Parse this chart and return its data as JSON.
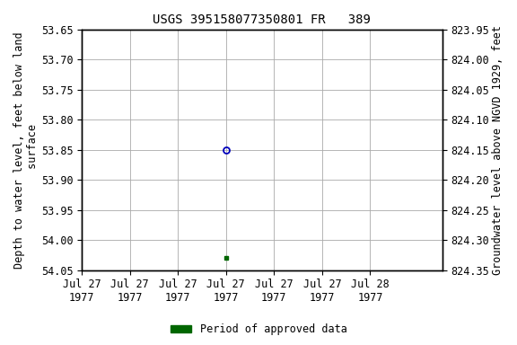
{
  "title": "USGS 395158077350801 FR   389",
  "ylabel_left": "Depth to water level, feet below land\n surface",
  "ylabel_right": "Groundwater level above NGVD 1929, feet",
  "ylim_left": [
    53.65,
    54.05
  ],
  "ylim_right_top": 824.35,
  "ylim_right_bottom": 823.95,
  "yticks_left": [
    53.65,
    53.7,
    53.75,
    53.8,
    53.85,
    53.9,
    53.95,
    54.0,
    54.05
  ],
  "yticks_right": [
    824.35,
    824.3,
    824.25,
    824.2,
    824.15,
    824.1,
    824.05,
    824.0,
    823.95
  ],
  "data_blue_x_hour": 12,
  "data_blue_y": 53.85,
  "data_green_x_hour": 12,
  "data_green_y": 54.03,
  "background_color": "#ffffff",
  "grid_color": "#aaaaaa",
  "point_blue_color": "#0000bb",
  "point_green_color": "#006600",
  "legend_label": "Period of approved data",
  "title_fontsize": 10,
  "tick_fontsize": 8.5,
  "label_fontsize": 8.5,
  "font_family": "monospace",
  "xmin_day": 27,
  "xmax_day": 28,
  "xtick_hours": [
    0,
    4,
    8,
    12,
    16,
    20,
    24
  ],
  "xtick_days": [
    27,
    27,
    27,
    27,
    27,
    27,
    28
  ]
}
